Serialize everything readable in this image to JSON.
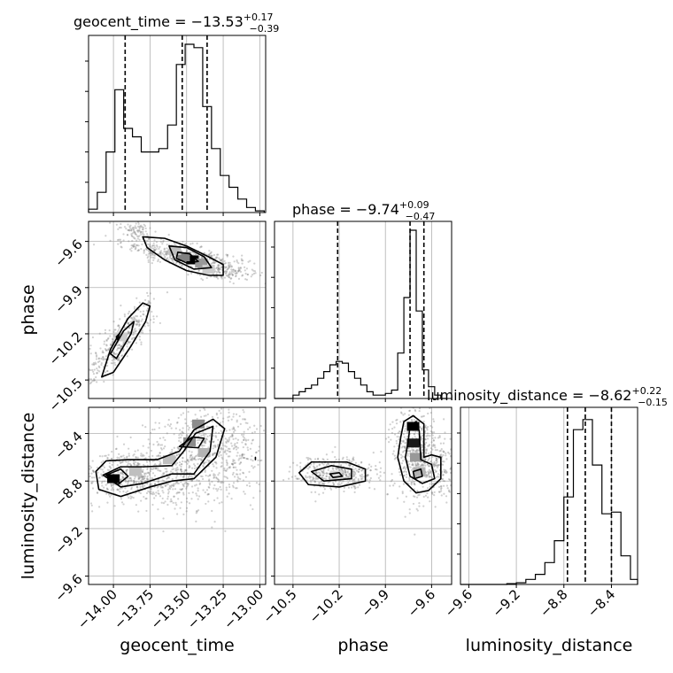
{
  "chart_data": {
    "type": "corner",
    "parameters": [
      "geocent_time",
      "phase",
      "luminosity_distance"
    ],
    "grid": true,
    "titles": [
      {
        "param": "geocent_time",
        "label": "geocent_time = ",
        "median": "−13.53",
        "plus": "+0.17",
        "minus": "−0.39"
      },
      {
        "param": "phase",
        "label": "phase = ",
        "median": "−9.74",
        "plus": "+0.09",
        "minus": "−0.47"
      },
      {
        "param": "luminosity_distance",
        "label": "luminosity_distance = ",
        "median": "−8.62",
        "plus": "+0.22",
        "minus": "−0.15"
      }
    ],
    "xlabels": [
      "geocent_time",
      "phase",
      "luminosity_distance"
    ],
    "ylabels": [
      "",
      "phase",
      "luminosity_distance"
    ],
    "ranges": {
      "geocent_time": [
        -14.17,
        -12.96
      ],
      "phase": [
        -10.62,
        -9.47
      ],
      "luminosity_distance": [
        -9.67,
        -8.18
      ]
    },
    "ticks": {
      "geocent_time": {
        "values": [
          -14.0,
          -13.75,
          -13.5,
          -13.25,
          -13.0
        ],
        "labels": [
          "−14.00",
          "−13.75",
          "−13.50",
          "−13.25",
          "−13.00"
        ]
      },
      "phase": {
        "values": [
          -10.5,
          -10.2,
          -9.9,
          -9.6
        ],
        "labels": [
          "−10.5",
          "−10.2",
          "−9.9",
          "−9.6"
        ]
      },
      "luminosity_distance": {
        "values": [
          -9.6,
          -9.2,
          -8.8,
          -8.4
        ],
        "labels": [
          "−9.6",
          "−9.2",
          "−8.8",
          "−8.4"
        ]
      }
    },
    "quantiles": {
      "geocent_time": [
        -13.92,
        -13.53,
        -13.36
      ],
      "phase": [
        -10.21,
        -9.74,
        -9.65
      ],
      "luminosity_distance": [
        -8.77,
        -8.62,
        -8.4
      ]
    },
    "histograms": {
      "geocent_time": {
        "edges": [
          -14.17,
          -14.11,
          -14.05,
          -13.99,
          -13.93,
          -13.87,
          -13.81,
          -13.75,
          -13.69,
          -13.63,
          -13.57,
          -13.51,
          -13.45,
          -13.39,
          -13.33,
          -13.27,
          -13.21,
          -13.15,
          -13.09,
          -13.03,
          -12.97
        ],
        "counts": [
          0.02,
          0.12,
          0.36,
          0.73,
          0.5,
          0.45,
          0.36,
          0.36,
          0.38,
          0.52,
          0.88,
          1.0,
          0.98,
          0.63,
          0.38,
          0.22,
          0.15,
          0.08,
          0.03,
          0.01
        ]
      },
      "phase": {
        "edges": [
          -10.62,
          -10.58,
          -10.54,
          -10.5,
          -10.46,
          -10.42,
          -10.38,
          -10.34,
          -10.3,
          -10.26,
          -10.22,
          -10.18,
          -10.14,
          -10.1,
          -10.06,
          -10.02,
          -9.98,
          -9.94,
          -9.9,
          -9.86,
          -9.82,
          -9.78,
          -9.74,
          -9.7,
          -9.66,
          -9.62,
          -9.58,
          -9.54,
          -9.5
        ],
        "counts": [
          0.0,
          0.0,
          0.0,
          0.02,
          0.04,
          0.06,
          0.08,
          0.12,
          0.16,
          0.2,
          0.22,
          0.21,
          0.16,
          0.12,
          0.08,
          0.04,
          0.02,
          0.02,
          0.03,
          0.05,
          0.27,
          0.6,
          1.0,
          0.52,
          0.17,
          0.07,
          0.02,
          0.0
        ]
      },
      "luminosity_distance": {
        "edges": [
          -9.67,
          -9.6,
          -9.52,
          -9.44,
          -9.36,
          -9.28,
          -9.2,
          -9.12,
          -9.04,
          -8.96,
          -8.88,
          -8.8,
          -8.72,
          -8.64,
          -8.56,
          -8.48,
          -8.4,
          -8.32,
          -8.24,
          -8.18
        ],
        "counts": [
          0.0,
          0.0,
          0.0,
          0.0,
          0.0,
          0.005,
          0.01,
          0.03,
          0.06,
          0.13,
          0.26,
          0.52,
          0.92,
          0.98,
          0.71,
          0.42,
          0.43,
          0.17,
          0.03
        ]
      }
    },
    "contours": [
      {
        "x": "geocent_time",
        "y": "phase",
        "levels": [
          [
            [
              -13.8,
              -9.57
            ],
            [
              -13.65,
              -9.58
            ],
            [
              -13.5,
              -9.63
            ],
            [
              -13.35,
              -9.7
            ],
            [
              -13.25,
              -9.75
            ],
            [
              -13.25,
              -9.82
            ],
            [
              -13.35,
              -9.82
            ],
            [
              -13.5,
              -9.79
            ],
            [
              -13.65,
              -9.72
            ],
            [
              -13.77,
              -9.64
            ]
          ],
          [
            [
              -13.62,
              -9.63
            ],
            [
              -13.5,
              -9.64
            ],
            [
              -13.38,
              -9.7
            ],
            [
              -13.33,
              -9.77
            ],
            [
              -13.45,
              -9.78
            ],
            [
              -13.58,
              -9.72
            ]
          ],
          [
            [
              -13.56,
              -9.67
            ],
            [
              -13.48,
              -9.68
            ],
            [
              -13.42,
              -9.73
            ],
            [
              -13.5,
              -9.74
            ],
            [
              -13.57,
              -9.71
            ]
          ],
          [
            [
              -14.08,
              -10.48
            ],
            [
              -14.02,
              -10.3
            ],
            [
              -13.9,
              -10.1
            ],
            [
              -13.8,
              -10.0
            ],
            [
              -13.75,
              -10.02
            ],
            [
              -13.78,
              -10.12
            ],
            [
              -13.88,
              -10.28
            ],
            [
              -14.0,
              -10.45
            ]
          ],
          [
            [
              -14.02,
              -10.33
            ],
            [
              -13.93,
              -10.18
            ],
            [
              -13.86,
              -10.12
            ],
            [
              -13.88,
              -10.2
            ],
            [
              -13.98,
              -10.36
            ]
          ],
          [
            [
              -13.98,
              -10.22
            ],
            [
              -13.96,
              -10.2
            ],
            [
              -13.97,
              -10.24
            ]
          ]
        ],
        "dense": [
          [
            -13.46,
            -9.72,
            1.0
          ],
          [
            -13.52,
            -9.7,
            0.5
          ],
          [
            -13.4,
            -9.74,
            0.4
          ],
          [
            -13.58,
            -9.66,
            0.25
          ],
          [
            -13.35,
            -9.78,
            0.2
          ],
          [
            -13.95,
            -10.22,
            0.2
          ]
        ]
      },
      {
        "x": "geocent_time",
        "y": "luminosity_distance",
        "levels": [
          [
            [
              -14.12,
              -8.72
            ],
            [
              -14.05,
              -8.63
            ],
            [
              -13.9,
              -8.62
            ],
            [
              -13.7,
              -8.62
            ],
            [
              -13.55,
              -8.55
            ],
            [
              -13.45,
              -8.37
            ],
            [
              -13.32,
              -8.28
            ],
            [
              -13.24,
              -8.36
            ],
            [
              -13.3,
              -8.6
            ],
            [
              -13.45,
              -8.78
            ],
            [
              -13.6,
              -8.8
            ],
            [
              -13.75,
              -8.85
            ],
            [
              -13.95,
              -8.93
            ],
            [
              -14.1,
              -8.87
            ]
          ],
          [
            [
              -14.07,
              -8.75
            ],
            [
              -13.95,
              -8.68
            ],
            [
              -13.8,
              -8.68
            ],
            [
              -13.6,
              -8.67
            ],
            [
              -13.52,
              -8.55
            ],
            [
              -13.44,
              -8.4
            ],
            [
              -13.32,
              -8.34
            ],
            [
              -13.34,
              -8.55
            ],
            [
              -13.45,
              -8.74
            ],
            [
              -13.6,
              -8.74
            ],
            [
              -13.8,
              -8.82
            ],
            [
              -13.95,
              -8.85
            ]
          ],
          [
            [
              -14.05,
              -8.75
            ],
            [
              -13.95,
              -8.7
            ],
            [
              -13.9,
              -8.76
            ],
            [
              -13.97,
              -8.83
            ]
          ],
          [
            [
              -13.55,
              -8.51
            ],
            [
              -13.46,
              -8.43
            ],
            [
              -13.38,
              -8.44
            ],
            [
              -13.42,
              -8.52
            ]
          ],
          [
            [
              -13.03,
              -8.62
            ],
            [
              -13.03,
              -8.6
            ]
          ]
        ],
        "dense": [
          [
            -14.0,
            -8.78,
            1.0
          ],
          [
            -13.42,
            -8.32,
            0.45
          ],
          [
            -13.48,
            -8.47,
            0.45
          ],
          [
            -13.62,
            -8.62,
            0.25
          ],
          [
            -13.85,
            -8.72,
            0.25
          ],
          [
            -13.38,
            -8.56,
            0.3
          ]
        ]
      },
      {
        "x": "phase",
        "y": "luminosity_distance",
        "levels": [
          [
            [
              -10.46,
              -8.73
            ],
            [
              -10.38,
              -8.64
            ],
            [
              -10.15,
              -8.64
            ],
            [
              -10.03,
              -8.7
            ],
            [
              -10.03,
              -8.8
            ],
            [
              -10.2,
              -8.85
            ],
            [
              -10.4,
              -8.83
            ]
          ],
          [
            [
              -10.38,
              -8.72
            ],
            [
              -10.25,
              -8.67
            ],
            [
              -10.12,
              -8.7
            ],
            [
              -10.12,
              -8.78
            ],
            [
              -10.3,
              -8.8
            ]
          ],
          [
            [
              -10.26,
              -8.74
            ],
            [
              -10.2,
              -8.73
            ],
            [
              -10.18,
              -8.76
            ],
            [
              -10.24,
              -8.77
            ]
          ],
          [
            [
              -9.8,
              -8.43
            ],
            [
              -9.78,
              -8.3
            ],
            [
              -9.72,
              -8.25
            ],
            [
              -9.65,
              -8.32
            ],
            [
              -9.65,
              -8.6
            ],
            [
              -9.6,
              -8.58
            ],
            [
              -9.54,
              -8.6
            ],
            [
              -9.54,
              -8.78
            ],
            [
              -9.62,
              -8.88
            ],
            [
              -9.7,
              -8.9
            ],
            [
              -9.78,
              -8.8
            ],
            [
              -9.82,
              -8.6
            ]
          ],
          [
            [
              -9.75,
              -8.45
            ],
            [
              -9.74,
              -8.33
            ],
            [
              -9.7,
              -8.3
            ],
            [
              -9.68,
              -8.38
            ],
            [
              -9.67,
              -8.62
            ],
            [
              -9.6,
              -8.66
            ],
            [
              -9.58,
              -8.78
            ],
            [
              -9.66,
              -8.82
            ],
            [
              -9.74,
              -8.76
            ],
            [
              -9.77,
              -8.6
            ]
          ],
          [
            [
              -9.72,
              -8.72
            ],
            [
              -9.67,
              -8.7
            ],
            [
              -9.66,
              -8.76
            ],
            [
              -9.71,
              -8.78
            ]
          ]
        ],
        "dense": [
          [
            -9.72,
            -8.34,
            1.0
          ],
          [
            -9.72,
            -8.48,
            0.9
          ],
          [
            -9.7,
            -8.6,
            0.4
          ],
          [
            -9.68,
            -8.72,
            0.3
          ],
          [
            -10.22,
            -8.75,
            0.15
          ]
        ]
      }
    ],
    "scatter_clusters": [
      {
        "x": "geocent_time",
        "y": "phase",
        "clusters": [
          [
            -13.5,
            -9.7,
            0.22,
            0.06,
            -0.75,
            520
          ],
          [
            -13.85,
            -9.52,
            0.06,
            0.03,
            0,
            80
          ],
          [
            -13.25,
            -9.8,
            0.1,
            0.03,
            0,
            90
          ],
          [
            -13.95,
            -10.25,
            0.12,
            0.14,
            0.85,
            380
          ]
        ]
      },
      {
        "x": "geocent_time",
        "y": "luminosity_distance",
        "clusters": [
          [
            -13.9,
            -8.74,
            0.16,
            0.1,
            0,
            420
          ],
          [
            -13.45,
            -8.55,
            0.18,
            0.2,
            0.35,
            520
          ],
          [
            -13.15,
            -8.62,
            0.1,
            0.18,
            0,
            160
          ],
          [
            -13.6,
            -8.85,
            0.25,
            0.12,
            0,
            200
          ]
        ]
      },
      {
        "x": "phase",
        "y": "luminosity_distance",
        "clusters": [
          [
            -10.22,
            -8.74,
            0.13,
            0.07,
            0,
            420
          ],
          [
            -9.7,
            -8.56,
            0.08,
            0.2,
            0,
            560
          ],
          [
            -9.55,
            -8.7,
            0.05,
            0.12,
            0,
            120
          ]
        ]
      }
    ]
  }
}
